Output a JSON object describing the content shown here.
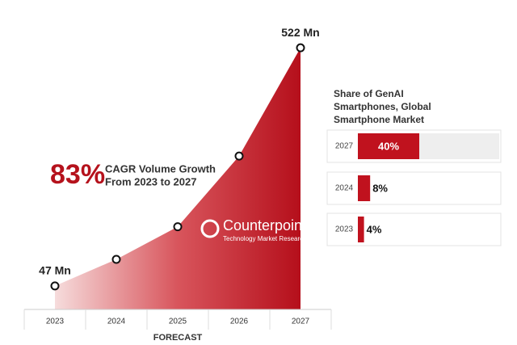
{
  "chart_data": [
    {
      "type": "area",
      "annotation": {
        "big": "83%",
        "lines": [
          "CAGR Volume Growth",
          "From 2023 to 2027"
        ]
      },
      "x_label": "FORECAST",
      "categories": [
        "2023",
        "2024",
        "2025",
        "2026",
        "2027"
      ],
      "values": [
        47,
        100,
        165,
        306,
        522
      ],
      "value_labels": [
        "47 Mn",
        null,
        null,
        null,
        "522 Mn"
      ],
      "ylim": [
        0,
        540
      ],
      "color": "#c0121e",
      "watermark": {
        "name": "Counterpoint",
        "tagline": "Technology Market Research"
      }
    },
    {
      "type": "hbar",
      "title": "Share of GenAI Smartphones, Global Smartphone Market",
      "categories": [
        "2027",
        "2024",
        "2023"
      ],
      "values": [
        40,
        8,
        4
      ],
      "value_labels": [
        "40%",
        "8%",
        "4%"
      ],
      "xlim": [
        0,
        100
      ],
      "color": "#c0121e"
    }
  ]
}
